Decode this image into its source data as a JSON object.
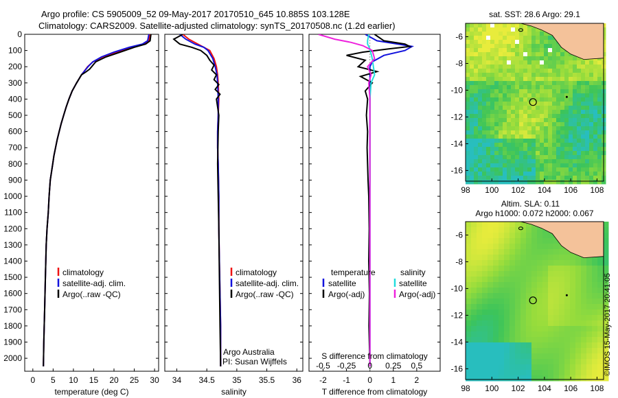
{
  "header": {
    "line1": "Argo profile: CS 5905009_52 09-May-2017 20170510_645 10.885S 103.128E",
    "line2": "Climatology: CARS2009. Satellite-adjusted climatology: synTS_20170508.nc (1.2d earlier)"
  },
  "stamp": "©IMOS 15-May-2017 20:41:05",
  "colors": {
    "climatology": "#ee1111",
    "satellite": "#1111dd",
    "argo": "#000000",
    "salinity_sat": "#22dddd",
    "salinity_argo": "#ee22dd",
    "land": "#f4c29a",
    "ocean_green": "#44c444",
    "ocean_yellow": "#e8ec3c"
  },
  "chart_data": [
    {
      "type": "line",
      "id": "temperature",
      "xlabel": "temperature (deg C)",
      "xlim": [
        -2,
        31
      ],
      "xticks": [
        0,
        5,
        10,
        15,
        20,
        25,
        30
      ],
      "ylim": [
        2080,
        0
      ],
      "yticks": [
        0,
        100,
        200,
        300,
        400,
        500,
        600,
        700,
        800,
        900,
        1000,
        1100,
        1200,
        1300,
        1400,
        1500,
        1600,
        1700,
        1800,
        1900,
        2000
      ],
      "legend": [
        "climatology",
        "satellite-adj. clim.",
        "Argo(..raw -QC)"
      ],
      "series": [
        {
          "name": "climatology",
          "color": "#ee1111",
          "x": [
            28.9,
            28.6,
            27.5,
            24.5,
            20.5,
            17.2,
            14.8,
            13.5,
            12.0,
            10.8,
            9.7,
            8.9,
            8.2,
            7.6,
            7.0,
            6.5,
            6.0,
            5.6,
            5.2,
            4.9,
            4.6,
            4.3,
            4.0,
            3.8,
            3.5,
            3.3,
            3.1,
            2.9,
            2.7,
            2.6
          ],
          "y": [
            0,
            40,
            60,
            80,
            110,
            140,
            170,
            200,
            250,
            300,
            350,
            400,
            450,
            500,
            550,
            600,
            650,
            700,
            750,
            800,
            850,
            900,
            1000,
            1100,
            1200,
            1300,
            1500,
            1700,
            1900,
            2050
          ]
        },
        {
          "name": "satellite-adj. clim.",
          "color": "#1111dd",
          "x": [
            28.6,
            28.3,
            27.0,
            23.8,
            20.0,
            16.9,
            14.8,
            13.6,
            12.0,
            10.8,
            9.7,
            8.9,
            8.2,
            7.6,
            7.0,
            6.5,
            6.0,
            5.6,
            5.2,
            4.9,
            4.6,
            4.3,
            4.0,
            3.8,
            3.5,
            3.3,
            3.1,
            2.9,
            2.7,
            2.6
          ],
          "y": [
            0,
            40,
            60,
            80,
            110,
            140,
            170,
            200,
            250,
            300,
            350,
            400,
            450,
            500,
            550,
            600,
            650,
            700,
            750,
            800,
            850,
            900,
            1000,
            1100,
            1200,
            1300,
            1500,
            1700,
            1900,
            2050
          ]
        },
        {
          "name": "Argo(..raw -QC)",
          "color": "#000000",
          "x": [
            29.1,
            29.0,
            28.9,
            27.8,
            25.0,
            21.5,
            18.0,
            15.5,
            14.5,
            14.0,
            13.2,
            12.0,
            10.8,
            9.7,
            8.9,
            8.2,
            7.6,
            7.0,
            6.5,
            6.0,
            5.6,
            5.2,
            4.9,
            4.6,
            4.3,
            4.0,
            3.8,
            3.5,
            3.3,
            3.1,
            2.9,
            2.7,
            2.6
          ],
          "y": [
            0,
            20,
            40,
            60,
            80,
            110,
            140,
            170,
            200,
            215,
            230,
            250,
            300,
            350,
            400,
            450,
            500,
            550,
            600,
            650,
            700,
            750,
            800,
            850,
            900,
            1000,
            1100,
            1200,
            1300,
            1500,
            1700,
            1900,
            2050
          ]
        }
      ]
    },
    {
      "type": "line",
      "id": "salinity",
      "xlabel": "salinity",
      "xlim": [
        33.8,
        36.1
      ],
      "xticks": [
        34,
        34.5,
        35,
        35.5,
        36
      ],
      "ylim": [
        2080,
        0
      ],
      "legend": [
        "climatology",
        "satellite-adj. clim.",
        "Argo(..raw -QC)"
      ],
      "annotations": [
        "Argo Australia",
        "PI: Susan Wijffels"
      ],
      "series": [
        {
          "name": "climatology",
          "color": "#ee1111",
          "x": [
            34.1,
            34.2,
            34.35,
            34.45,
            34.55,
            34.62,
            34.66,
            34.68,
            34.69,
            34.7,
            34.69,
            34.68,
            34.68,
            34.69,
            34.7,
            34.7,
            34.71,
            34.72,
            34.73,
            34.73
          ],
          "y": [
            0,
            30,
            60,
            80,
            100,
            150,
            200,
            250,
            300,
            400,
            500,
            600,
            700,
            800,
            1000,
            1200,
            1400,
            1600,
            1800,
            2050
          ]
        },
        {
          "name": "satellite-adj. clim.",
          "color": "#1111dd",
          "x": [
            34.05,
            34.15,
            34.3,
            34.45,
            34.52,
            34.6,
            34.64,
            34.67,
            34.68,
            34.69,
            34.69,
            34.68,
            34.68,
            34.69,
            34.7,
            34.7,
            34.71,
            34.72,
            34.73,
            34.73
          ],
          "y": [
            0,
            30,
            60,
            80,
            100,
            150,
            200,
            250,
            300,
            400,
            500,
            600,
            700,
            800,
            1000,
            1200,
            1400,
            1600,
            1800,
            2050
          ]
        },
        {
          "name": "Argo(..raw -QC)",
          "color": "#000000",
          "x": [
            34.1,
            33.95,
            34.05,
            34.25,
            34.4,
            34.5,
            34.55,
            34.62,
            34.58,
            34.66,
            34.62,
            34.7,
            34.64,
            34.72,
            34.66,
            34.7,
            34.69,
            34.68,
            34.69,
            34.7,
            34.71,
            34.72,
            34.73
          ],
          "y": [
            0,
            30,
            60,
            80,
            100,
            130,
            160,
            190,
            220,
            250,
            280,
            310,
            340,
            370,
            400,
            500,
            600,
            800,
            1000,
            1200,
            1500,
            1800,
            2050
          ]
        }
      ]
    },
    {
      "type": "line",
      "id": "difference",
      "xlabel_bottom": "T difference from climatology",
      "xlabel_top": "S difference from climatology",
      "xlim": [
        -2.6,
        3.0
      ],
      "xticks_bottom": [
        -2,
        -1,
        0,
        1,
        2
      ],
      "xticks_top": [
        -0.5,
        -0.25,
        0,
        0.25,
        0.5
      ],
      "ylim": [
        2080,
        0
      ],
      "legend_left": [
        "temperature",
        "satellite",
        "Argo(-adj)"
      ],
      "legend_right": [
        "salinity",
        "satellite",
        "Argo(-adj)"
      ],
      "series": [
        {
          "name": "T satellite",
          "color": "#1111dd",
          "x": [
            -0.2,
            0.3,
            1.2,
            1.8,
            1.5,
            0.6,
            0.1,
            0.0,
            0.0,
            0.0,
            0.0
          ],
          "y": [
            0,
            40,
            60,
            75,
            100,
            130,
            170,
            200,
            300,
            500,
            2050
          ]
        },
        {
          "name": "T Argo(-adj)",
          "color": "#000000",
          "x": [
            0.2,
            0.6,
            1.5,
            1.7,
            0.8,
            -0.3,
            -1.0,
            -0.2,
            -0.5,
            0.3,
            -0.4,
            0.1,
            -0.2,
            -0.1,
            -0.15,
            -0.1,
            -0.12,
            -0.1,
            -0.08,
            -0.05,
            -0.03,
            -0.05,
            -0.02,
            -0.04,
            0.0
          ],
          "y": [
            0,
            40,
            60,
            75,
            90,
            110,
            130,
            160,
            200,
            230,
            260,
            300,
            350,
            400,
            500,
            600,
            700,
            800,
            900,
            1000,
            1200,
            1400,
            1600,
            1800,
            2050
          ]
        },
        {
          "name": "S satellite",
          "color": "#22dddd",
          "x": [
            -0.05,
            -0.1,
            -0.1,
            0.0,
            0.1,
            0.2,
            0.05,
            0.0,
            0.0,
            0.0,
            0.0
          ],
          "y": [
            0,
            40,
            60,
            90,
            150,
            250,
            300,
            400,
            600,
            1000,
            2050
          ]
        },
        {
          "name": "S Argo(-adj)",
          "color": "#ee22dd",
          "x": [
            -2.2,
            -1.5,
            -0.8,
            -0.3,
            0.1,
            0.2,
            -0.1,
            0.05,
            -0.05,
            0.0,
            0.0,
            0.0,
            0.0
          ],
          "y": [
            0,
            30,
            50,
            70,
            100,
            150,
            200,
            250,
            300,
            400,
            600,
            1000,
            2050
          ]
        }
      ]
    },
    {
      "type": "heatmap",
      "id": "sst-map",
      "title": "sat. SST: 28.6  Argo: 29.1",
      "xlim": [
        98,
        108.5
      ],
      "ylim": [
        -16.8,
        -5
      ],
      "xticks": [
        98,
        100,
        102,
        104,
        106,
        108
      ],
      "yticks": [
        -6,
        -8,
        -10,
        -12,
        -14,
        -16
      ],
      "argo_position": [
        103.128,
        -10.885
      ]
    },
    {
      "type": "heatmap",
      "id": "sla-map",
      "title_line1": "Altim. SLA: 0.11",
      "title_line2": "Argo h1000: 0.072  h2000: 0.067",
      "xlim": [
        98,
        108.5
      ],
      "ylim": [
        -16.8,
        -5
      ],
      "xticks": [
        98,
        100,
        102,
        104,
        106,
        108
      ],
      "yticks": [
        -6,
        -8,
        -10,
        -12,
        -14,
        -16
      ],
      "argo_position": [
        103.128,
        -10.885
      ]
    }
  ]
}
